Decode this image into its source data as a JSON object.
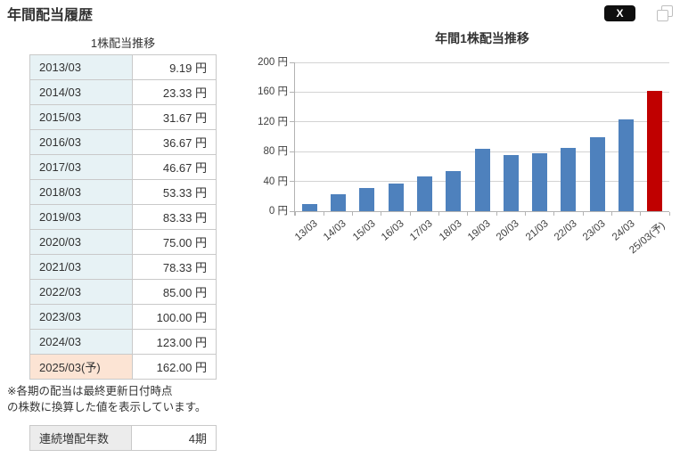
{
  "header": {
    "title": "年間配当履歴",
    "share_label": "X"
  },
  "table": {
    "caption": "1株配当推移",
    "unit": "円",
    "rows": [
      {
        "period": "2013/03",
        "value": "9.19",
        "forecast": false
      },
      {
        "period": "2014/03",
        "value": "23.33",
        "forecast": false
      },
      {
        "period": "2015/03",
        "value": "31.67",
        "forecast": false
      },
      {
        "period": "2016/03",
        "value": "36.67",
        "forecast": false
      },
      {
        "period": "2017/03",
        "value": "46.67",
        "forecast": false
      },
      {
        "period": "2018/03",
        "value": "53.33",
        "forecast": false
      },
      {
        "period": "2019/03",
        "value": "83.33",
        "forecast": false
      },
      {
        "period": "2020/03",
        "value": "75.00",
        "forecast": false
      },
      {
        "period": "2021/03",
        "value": "78.33",
        "forecast": false
      },
      {
        "period": "2022/03",
        "value": "85.00",
        "forecast": false
      },
      {
        "period": "2023/03",
        "value": "100.00",
        "forecast": false
      },
      {
        "period": "2024/03",
        "value": "123.00",
        "forecast": false
      },
      {
        "period": "2025/03(予)",
        "value": "162.00",
        "forecast": true
      }
    ]
  },
  "footnote": {
    "line1": "※各期の配当は最終更新日付時点",
    "line2": "の株数に換算した値を表示しています。"
  },
  "streak": {
    "label": "連続増配年数",
    "value": "4期"
  },
  "chart_data": {
    "type": "bar",
    "title": "年間1株配当推移",
    "categories": [
      "13/03",
      "14/03",
      "15/03",
      "16/03",
      "17/03",
      "18/03",
      "19/03",
      "20/03",
      "21/03",
      "22/03",
      "23/03",
      "24/03",
      "25/03(予)"
    ],
    "values": [
      9.19,
      23.33,
      31.67,
      36.67,
      46.67,
      53.33,
      83.33,
      75.0,
      78.33,
      85.0,
      100.0,
      123.0,
      162.0
    ],
    "forecast_index": 12,
    "ylim": [
      0,
      200
    ],
    "ytick_step": 40,
    "ytick_suffix": " 円",
    "grid": true,
    "legend": "none",
    "bar_color_default": "#4e81bd",
    "bar_color_forecast": "#c00000"
  },
  "colors": {
    "table_period_bg": "#e7f2f5",
    "table_forecast_bg": "#fce4d4",
    "streak_label_bg": "#ececec",
    "gridline": "#d3d3d3",
    "axis": "#b3b3b3",
    "share_button_bg": "#0f0f0f"
  }
}
